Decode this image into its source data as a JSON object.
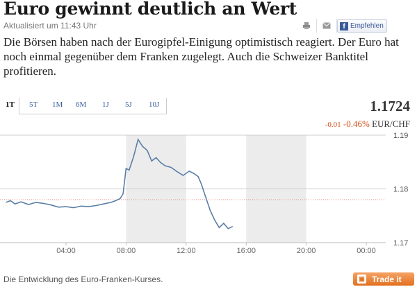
{
  "article": {
    "title": "Euro gewinnt deutlich an Wert",
    "updated": "Aktualisiert um 11:43 Uhr",
    "lead": "Die Börsen haben nach der Eurogipfel-Einigung optimistisch reagiert. Der Euro hat noch einmal gegenüber dem Franken zugelegt. Auch die Schweizer Banktitel profitieren."
  },
  "share": {
    "icons": [
      "print-icon",
      "mail-icon",
      "twitter-icon"
    ],
    "facebook_label": "Empfehlen"
  },
  "quote": {
    "tabs": [
      "1T",
      "5T",
      "1M",
      "6M",
      "1J",
      "5J",
      "10J"
    ],
    "active_tab": "1T",
    "price": "1.1724",
    "change_abs": "-0.01",
    "change_pct": "-0.46%",
    "pair": "EUR/CHF"
  },
  "chart_data": {
    "type": "line",
    "x_ticks": [
      "04:00",
      "08:00",
      "12:00",
      "16:00",
      "20:00",
      "00:00"
    ],
    "y_ticks": [
      "1.19",
      "1.18",
      "1.17"
    ],
    "ylim": [
      1.17,
      1.19
    ],
    "reference_line": 1.178,
    "series": [
      {
        "x": [
          0,
          0.3,
          0.6,
          1.0,
          1.5,
          2.0,
          2.5,
          3.0,
          3.5,
          4.0,
          4.5,
          5.0,
          5.5,
          6.0,
          6.5,
          7.0,
          7.3,
          7.6,
          7.8,
          8.0,
          8.2,
          8.5,
          8.8,
          9.1,
          9.4,
          9.7,
          10.0,
          10.3,
          10.6,
          11.0,
          11.4,
          11.8,
          12.2,
          12.5,
          12.8,
          13.0,
          13.3,
          13.6,
          13.9,
          14.2,
          14.5,
          14.8,
          15.1
        ],
        "y": [
          1.1775,
          1.1778,
          1.1772,
          1.1776,
          1.1771,
          1.1775,
          1.1773,
          1.177,
          1.1766,
          1.1767,
          1.1765,
          1.1768,
          1.1767,
          1.1769,
          1.1772,
          1.1775,
          1.1778,
          1.1782,
          1.1791,
          1.1838,
          1.1835,
          1.186,
          1.1892,
          1.1879,
          1.1872,
          1.1852,
          1.1858,
          1.1849,
          1.1843,
          1.184,
          1.1832,
          1.1825,
          1.1833,
          1.1829,
          1.1823,
          1.181,
          1.1785,
          1.176,
          1.1742,
          1.1728,
          1.1736,
          1.1726,
          1.173
        ]
      }
    ],
    "shaded_bands": [
      [
        8,
        12
      ],
      [
        16,
        20
      ]
    ]
  },
  "footer": {
    "caption": "Die Entwicklung des Euro-Franken-Kurses.",
    "trade_label": "Trade it"
  },
  "colors": {
    "accent": "#e2701f",
    "link": "#3a5e9a",
    "line": "#5b7ea6"
  }
}
